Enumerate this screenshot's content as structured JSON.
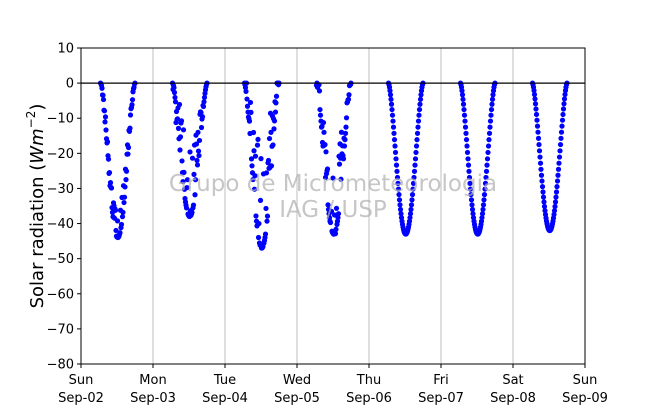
{
  "chart_data": {
    "type": "scatter",
    "ylabel_main": "Solar radiation (",
    "ylabel_unit": "Wm",
    "ylabel_exp": "−2",
    "ylabel_close": ")",
    "ylim": [
      -80,
      10
    ],
    "yticks": [
      10,
      0,
      -10,
      -20,
      -30,
      -40,
      -50,
      -60,
      -70,
      -80
    ],
    "yticks_text": [
      "10",
      "0",
      "−10",
      "−20",
      "−30",
      "−40",
      "−50",
      "−60",
      "−70",
      "−80"
    ],
    "xlim_days": [
      0,
      7
    ],
    "xticks": [
      {
        "day": "Sun",
        "date": "Sep-02"
      },
      {
        "day": "Mon",
        "date": "Sep-03"
      },
      {
        "day": "Tue",
        "date": "Sep-04"
      },
      {
        "day": "Wed",
        "date": "Sep-05"
      },
      {
        "day": "Thu",
        "date": "Sep-06"
      },
      {
        "day": "Fri",
        "date": "Sep-07"
      },
      {
        "day": "Sat",
        "date": "Sep-08"
      },
      {
        "day": "Sun",
        "date": "Sep-09"
      }
    ],
    "grid": "vertical",
    "zero_line": true,
    "marker_color": "#0000ff",
    "watermark": [
      "Grupo de Micrometeorologia",
      "IAG / USP"
    ],
    "days": [
      {
        "date": "Sep-02",
        "min": -44,
        "cloudy": true,
        "jitter": 5
      },
      {
        "date": "Sep-03",
        "min": -38,
        "cloudy": true,
        "jitter": 12
      },
      {
        "date": "Sep-04",
        "min": -47,
        "cloudy": true,
        "jitter": 18
      },
      {
        "date": "Sep-05",
        "min": -43,
        "cloudy": true,
        "jitter": 12
      },
      {
        "date": "Sep-06",
        "min": -43,
        "cloudy": false,
        "jitter": 0
      },
      {
        "date": "Sep-07",
        "min": -43,
        "cloudy": false,
        "jitter": 0
      },
      {
        "date": "Sep-08",
        "min": -42,
        "cloudy": false,
        "jitter": 0
      }
    ],
    "day_window_hours": [
      6.5,
      18.0
    ]
  }
}
